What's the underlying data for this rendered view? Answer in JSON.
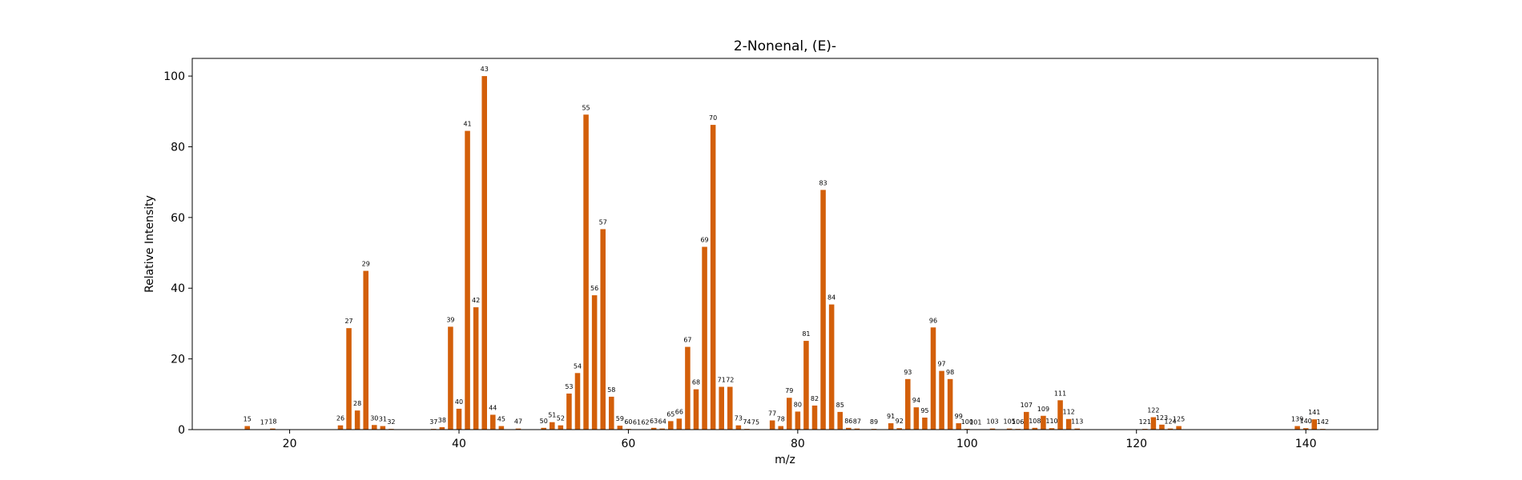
{
  "colors": {
    "bar": "#d35f0a",
    "frame": "#000000",
    "background": "#ffffff"
  },
  "chart_data": {
    "type": "bar",
    "title": "2-Nonenal, (E)-",
    "xlabel": "m/z",
    "ylabel": "Relative Intensity",
    "xlim": [
      8.5,
      148.5
    ],
    "ylim": [
      0,
      105
    ],
    "xticks": [
      20,
      40,
      60,
      80,
      100,
      120,
      140
    ],
    "yticks": [
      0,
      20,
      40,
      60,
      80,
      100
    ],
    "grid": false,
    "points": [
      {
        "x": 15,
        "y": 1.0
      },
      {
        "x": 17,
        "y": 0.1
      },
      {
        "x": 18,
        "y": 0.3
      },
      {
        "x": 26,
        "y": 1.2
      },
      {
        "x": 27,
        "y": 28.7
      },
      {
        "x": 28,
        "y": 5.4
      },
      {
        "x": 29,
        "y": 44.9
      },
      {
        "x": 30,
        "y": 1.3
      },
      {
        "x": 31,
        "y": 1.0
      },
      {
        "x": 32,
        "y": 0.2
      },
      {
        "x": 37,
        "y": 0.2
      },
      {
        "x": 38,
        "y": 0.7
      },
      {
        "x": 39,
        "y": 29.1
      },
      {
        "x": 40,
        "y": 5.9
      },
      {
        "x": 41,
        "y": 84.5
      },
      {
        "x": 42,
        "y": 34.6
      },
      {
        "x": 43,
        "y": 100.0
      },
      {
        "x": 44,
        "y": 4.2
      },
      {
        "x": 45,
        "y": 1.0
      },
      {
        "x": 47,
        "y": 0.3
      },
      {
        "x": 50,
        "y": 0.5
      },
      {
        "x": 51,
        "y": 2.1
      },
      {
        "x": 52,
        "y": 1.2
      },
      {
        "x": 53,
        "y": 10.2
      },
      {
        "x": 54,
        "y": 16.0
      },
      {
        "x": 55,
        "y": 89.1
      },
      {
        "x": 56,
        "y": 38.0
      },
      {
        "x": 57,
        "y": 56.7
      },
      {
        "x": 58,
        "y": 9.3
      },
      {
        "x": 59,
        "y": 1.1
      },
      {
        "x": 60,
        "y": 0.2
      },
      {
        "x": 61,
        "y": 0.1
      },
      {
        "x": 62,
        "y": 0.1
      },
      {
        "x": 63,
        "y": 0.5
      },
      {
        "x": 64,
        "y": 0.3
      },
      {
        "x": 65,
        "y": 2.4
      },
      {
        "x": 66,
        "y": 3.1
      },
      {
        "x": 67,
        "y": 23.4
      },
      {
        "x": 68,
        "y": 11.4
      },
      {
        "x": 69,
        "y": 51.7
      },
      {
        "x": 70,
        "y": 86.2
      },
      {
        "x": 71,
        "y": 12.1
      },
      {
        "x": 72,
        "y": 12.1
      },
      {
        "x": 73,
        "y": 1.2
      },
      {
        "x": 74,
        "y": 0.2
      },
      {
        "x": 75,
        "y": 0.1
      },
      {
        "x": 77,
        "y": 2.6
      },
      {
        "x": 78,
        "y": 1.0
      },
      {
        "x": 79,
        "y": 9.0
      },
      {
        "x": 80,
        "y": 5.1
      },
      {
        "x": 81,
        "y": 25.1
      },
      {
        "x": 82,
        "y": 6.8
      },
      {
        "x": 83,
        "y": 67.8
      },
      {
        "x": 84,
        "y": 35.4
      },
      {
        "x": 85,
        "y": 5.0
      },
      {
        "x": 86,
        "y": 0.5
      },
      {
        "x": 87,
        "y": 0.3
      },
      {
        "x": 89,
        "y": 0.2
      },
      {
        "x": 91,
        "y": 1.8
      },
      {
        "x": 92,
        "y": 0.4
      },
      {
        "x": 93,
        "y": 14.3
      },
      {
        "x": 94,
        "y": 6.3
      },
      {
        "x": 95,
        "y": 3.4
      },
      {
        "x": 96,
        "y": 28.9
      },
      {
        "x": 97,
        "y": 16.6
      },
      {
        "x": 98,
        "y": 14.3
      },
      {
        "x": 99,
        "y": 1.8
      },
      {
        "x": 100,
        "y": 0.2
      },
      {
        "x": 101,
        "y": 0.1
      },
      {
        "x": 103,
        "y": 0.3
      },
      {
        "x": 105,
        "y": 0.3
      },
      {
        "x": 106,
        "y": 0.2
      },
      {
        "x": 107,
        "y": 5.0
      },
      {
        "x": 108,
        "y": 0.5
      },
      {
        "x": 109,
        "y": 3.9
      },
      {
        "x": 110,
        "y": 0.4
      },
      {
        "x": 111,
        "y": 8.3
      },
      {
        "x": 112,
        "y": 3.0
      },
      {
        "x": 113,
        "y": 0.3
      },
      {
        "x": 121,
        "y": 0.2
      },
      {
        "x": 122,
        "y": 3.5
      },
      {
        "x": 123,
        "y": 1.4
      },
      {
        "x": 124,
        "y": 0.3
      },
      {
        "x": 125,
        "y": 1.0
      },
      {
        "x": 139,
        "y": 1.0
      },
      {
        "x": 140,
        "y": 0.4
      },
      {
        "x": 141,
        "y": 2.9
      },
      {
        "x": 142,
        "y": 0.2
      }
    ]
  }
}
